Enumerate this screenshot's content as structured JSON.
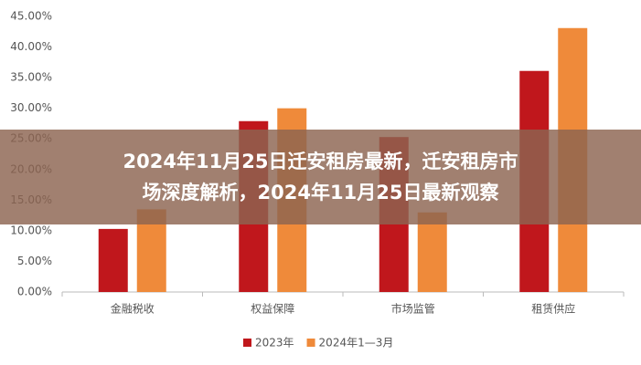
{
  "chart_data": {
    "type": "bar",
    "banner_title": [
      "2024年11月25日迁安租房最新，迁安租房市",
      "场深度解析，2024年11月25日最新观察"
    ],
    "categories": [
      "金融税收",
      "权益保障",
      "市场监管",
      "租赁供应"
    ],
    "series": [
      {
        "name": "2023年",
        "color": "#c0171c",
        "values": [
          10.3,
          27.9,
          25.3,
          36.1
        ]
      },
      {
        "name": "2024年1—3月",
        "color": "#ef8a3a",
        "values": [
          13.5,
          30.0,
          13.0,
          43.1
        ]
      }
    ],
    "ylim": [
      0,
      45
    ],
    "yticks": [
      {
        "value": 0,
        "label": "0.00%"
      },
      {
        "value": 5,
        "label": "5.00%"
      },
      {
        "value": 10,
        "label": "10.00%"
      },
      {
        "value": 15,
        "label": "15.00%"
      },
      {
        "value": 20,
        "label": "20.00%"
      },
      {
        "value": 25,
        "label": "25.00%"
      },
      {
        "value": 30,
        "label": "30.00%"
      },
      {
        "value": 35,
        "label": "35.00%"
      },
      {
        "value": 40,
        "label": "40.00%"
      },
      {
        "value": 45,
        "label": "45.00%"
      }
    ],
    "grid": false
  }
}
